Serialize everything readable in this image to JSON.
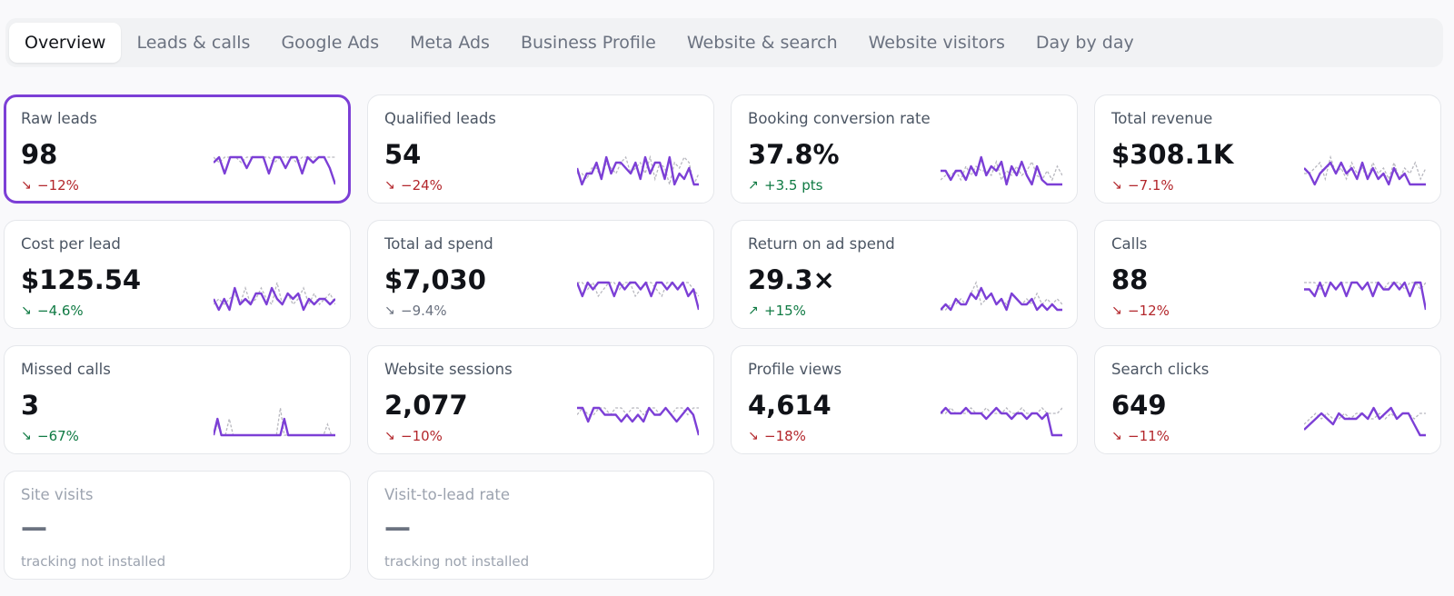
{
  "tabs": [
    {
      "label": "Overview",
      "active": true
    },
    {
      "label": "Leads & calls"
    },
    {
      "label": "Google Ads"
    },
    {
      "label": "Meta Ads"
    },
    {
      "label": "Business Profile"
    },
    {
      "label": "Website & search"
    },
    {
      "label": "Website visitors"
    },
    {
      "label": "Day by day"
    }
  ],
  "colors": {
    "accent": "#7c3fd6",
    "comparison": "#b8b8bf",
    "negative": "#b3262b",
    "positive": "#0f7a43",
    "neutral": "#6b7280"
  },
  "cards": [
    {
      "label": "Raw leads",
      "value": "98",
      "delta": "−12%",
      "direction": "down",
      "tone": "negative",
      "selected": true,
      "current": [
        5,
        6,
        3,
        6,
        6,
        6,
        4,
        6,
        6,
        6,
        3,
        6,
        6,
        4,
        6,
        6,
        3,
        6,
        5,
        6,
        6,
        4,
        1
      ],
      "previous": [
        6,
        5,
        6,
        6,
        6,
        5,
        6,
        6,
        6,
        6,
        6,
        5,
        6,
        6,
        6,
        5,
        6,
        6,
        6,
        6,
        6,
        6,
        6
      ]
    },
    {
      "label": "Qualified leads",
      "value": "54",
      "delta": "−24%",
      "direction": "down",
      "tone": "negative",
      "current": [
        4,
        1,
        3,
        3,
        5,
        2,
        6,
        3,
        5,
        5,
        4,
        3,
        5,
        2,
        6,
        3,
        5,
        5,
        2,
        6,
        1,
        3,
        2,
        4,
        1,
        1
      ],
      "previous": [
        3,
        3,
        2,
        4,
        4,
        2,
        5,
        4,
        3,
        5,
        6,
        3,
        4,
        5,
        3,
        6,
        2,
        5,
        4,
        1,
        5,
        4,
        6,
        5,
        1,
        3
      ]
    },
    {
      "label": "Booking conversion rate",
      "value": "37.8%",
      "delta": "+3.5 pts",
      "direction": "up",
      "tone": "positive",
      "current": [
        4,
        4,
        2,
        4,
        4,
        2,
        5,
        3,
        7,
        3,
        5,
        4,
        6,
        1,
        5,
        3,
        6,
        3,
        1,
        5,
        2,
        1,
        1,
        1,
        1
      ],
      "previous": [
        2,
        3,
        3,
        4,
        2,
        5,
        3,
        5,
        4,
        4,
        3,
        6,
        2,
        4,
        3,
        5,
        3,
        4,
        6,
        3,
        2,
        4,
        2,
        5,
        3
      ]
    },
    {
      "label": "Total revenue",
      "value": "$308.1K",
      "delta": "−7.1%",
      "direction": "down",
      "tone": "negative",
      "current": [
        4,
        3,
        1,
        3,
        4,
        5,
        3,
        5,
        3,
        4,
        2,
        5,
        2,
        4,
        2,
        3,
        1,
        4,
        2,
        3,
        1,
        1,
        1,
        1
      ],
      "previous": [
        3,
        3,
        4,
        5,
        2,
        6,
        3,
        4,
        2,
        5,
        3,
        4,
        2,
        5,
        3,
        4,
        2,
        5,
        2,
        4,
        3,
        5,
        2,
        4
      ]
    },
    {
      "label": "Cost per lead",
      "value": "$125.54",
      "delta": "−4.6%",
      "direction": "down",
      "tone": "positive",
      "current": [
        3,
        1,
        3,
        1,
        5,
        2,
        3,
        2,
        4,
        4,
        2,
        5,
        3,
        2,
        4,
        3,
        4,
        1,
        3,
        2,
        3,
        3,
        2,
        3
      ],
      "previous": [
        2,
        3,
        2,
        3,
        4,
        2,
        5,
        2,
        3,
        5,
        3,
        2,
        6,
        2,
        4,
        2,
        3,
        5,
        2,
        4,
        2,
        3,
        4,
        2
      ]
    },
    {
      "label": "Total ad spend",
      "value": "$7,030",
      "delta": "−9.4%",
      "direction": "down",
      "tone": "neutral",
      "current": [
        5,
        3,
        5,
        4,
        5,
        5,
        5,
        3,
        5,
        4,
        5,
        5,
        4,
        5,
        3,
        5,
        5,
        4,
        5,
        4,
        5,
        3,
        4,
        1
      ],
      "previous": [
        5,
        5,
        4,
        5,
        3,
        4,
        5,
        5,
        4,
        5,
        5,
        3,
        4,
        5,
        5,
        4,
        3,
        5,
        5,
        4,
        5,
        5,
        4,
        3
      ]
    },
    {
      "label": "Return on ad spend",
      "value": "29.3×",
      "delta": "+15%",
      "direction": "up",
      "tone": "positive",
      "current": [
        1,
        2,
        1,
        3,
        2,
        2,
        4,
        3,
        5,
        3,
        4,
        2,
        3,
        1,
        4,
        3,
        2,
        2,
        3,
        1,
        2,
        1,
        2,
        1,
        1
      ],
      "previous": [
        1,
        1,
        2,
        2,
        3,
        2,
        4,
        6,
        2,
        3,
        4,
        2,
        3,
        2,
        4,
        3,
        2,
        3,
        2,
        4,
        2,
        3,
        2,
        3,
        2
      ]
    },
    {
      "label": "Calls",
      "value": "88",
      "delta": "−12%",
      "direction": "down",
      "tone": "negative",
      "current": [
        5,
        5,
        4,
        6,
        4,
        6,
        5,
        6,
        4,
        6,
        6,
        5,
        6,
        4,
        6,
        5,
        5,
        6,
        5,
        6,
        4,
        6,
        6,
        2
      ],
      "previous": [
        6,
        6,
        6,
        5,
        6,
        6,
        5,
        6,
        6,
        6,
        6,
        5,
        6,
        6,
        6,
        5,
        6,
        6,
        6,
        5,
        6,
        6,
        5,
        6
      ]
    },
    {
      "label": "Missed calls",
      "value": "3",
      "delta": "−67%",
      "direction": "down",
      "tone": "positive",
      "current": [
        1,
        4,
        1,
        1,
        1,
        1,
        1,
        1,
        1,
        1,
        1,
        1,
        1,
        1,
        1,
        1,
        1,
        1,
        4,
        1,
        1,
        1,
        1,
        1,
        1,
        1,
        1,
        1,
        1,
        1,
        1,
        1
      ],
      "previous": [
        1,
        3,
        1,
        1,
        4,
        1,
        1,
        1,
        1,
        1,
        1,
        1,
        1,
        1,
        1,
        1,
        1,
        6,
        1,
        1,
        1,
        1,
        1,
        1,
        1,
        1,
        1,
        1,
        1,
        3,
        1,
        1
      ]
    },
    {
      "label": "Website sessions",
      "value": "2,077",
      "delta": "−10%",
      "direction": "down",
      "tone": "negative",
      "current": [
        5,
        5,
        3,
        5,
        5,
        4,
        4,
        4,
        3,
        4,
        3,
        4,
        3,
        5,
        4,
        4,
        5,
        4,
        3,
        4,
        5,
        4,
        1
      ],
      "previous": [
        4,
        5,
        4,
        4,
        5,
        5,
        4,
        5,
        5,
        4,
        5,
        5,
        4,
        5,
        5,
        4,
        5,
        4,
        5,
        5,
        4,
        5,
        5
      ]
    },
    {
      "label": "Profile views",
      "value": "4,614",
      "delta": "−18%",
      "direction": "down",
      "tone": "negative",
      "current": [
        5,
        6,
        5,
        5,
        5,
        6,
        5,
        5,
        5,
        4,
        5,
        6,
        5,
        5,
        4,
        5,
        5,
        4,
        5,
        5,
        4,
        5,
        1,
        1,
        1
      ],
      "previous": [
        5,
        5,
        6,
        5,
        5,
        5,
        6,
        5,
        5,
        6,
        5,
        5,
        5,
        6,
        5,
        5,
        6,
        5,
        5,
        5,
        6,
        5,
        5,
        5,
        6
      ]
    },
    {
      "label": "Search clicks",
      "value": "649",
      "delta": "−11%",
      "direction": "down",
      "tone": "negative",
      "current": [
        2,
        3,
        4,
        5,
        4,
        3,
        5,
        4,
        4,
        4,
        5,
        4,
        6,
        4,
        5,
        6,
        4,
        5,
        5,
        3,
        1,
        1
      ],
      "previous": [
        3,
        4,
        5,
        4,
        5,
        4,
        4,
        5,
        4,
        5,
        5,
        4,
        4,
        5,
        4,
        5,
        4,
        5,
        5,
        4,
        5,
        5
      ]
    },
    {
      "label": "Site visits",
      "value": "—",
      "delta": "tracking not installed",
      "disabled": true
    },
    {
      "label": "Visit-to-lead rate",
      "value": "—",
      "delta": "tracking not installed",
      "disabled": true
    }
  ]
}
